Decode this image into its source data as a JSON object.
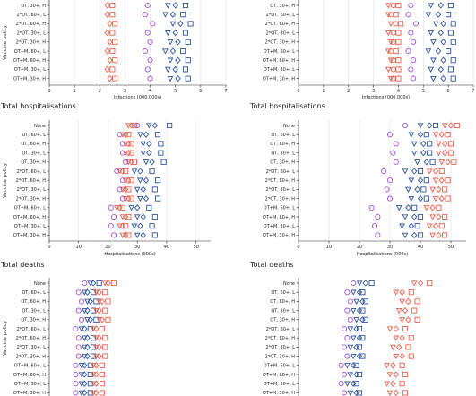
{
  "figure": {
    "policies": [
      "None",
      "OT, 60+, L",
      "OT, 60+, H",
      "OT, 30+, L",
      "OT, 30+, H",
      "2*OT, 60+, L",
      "2*OT, 60+, H",
      "2*OT, 30+, L",
      "2*OT, 30+, H",
      "OT+M, 60+, L",
      "OT+M, 60+, H",
      "OT+M, 30+, L",
      "OT+M, 30+, H"
    ],
    "colors": {
      "red": "#e8604c",
      "blue": "#2c55a0",
      "purple": "#a64fd6",
      "grid": "#e2e2e2",
      "axis": "#222222"
    },
    "marker_legend": {
      "circle": "purple",
      "triangle-down": "red/blue",
      "triangle-up": "red/blue",
      "diamond": "red/blue",
      "square": "red/blue"
    }
  },
  "chart_data": [
    {
      "type": "scatter",
      "title": "",
      "xlabel": "Infections (000,000s)",
      "ylabel": "Vaccine policy",
      "xlim": [
        0,
        7
      ],
      "xticks": [
        0,
        1,
        2,
        3,
        4,
        5,
        6,
        7
      ],
      "categories": [
        "OT, 30+, H",
        "2*OT, 60+, L",
        "2*OT, 60+, H",
        "2*OT, 30+, L",
        "2*OT, 30+, H",
        "OT+M, 60+, L",
        "OT+M, 60+, H",
        "OT+M, 30+, L",
        "OT+M, 30+, H"
      ],
      "series": [
        {
          "color": "red",
          "marker": "diamond",
          "values": [
            2.3,
            2.3,
            2.4,
            2.3,
            2.4,
            2.3,
            2.4,
            2.3,
            2.4
          ]
        },
        {
          "color": "red",
          "marker": "square",
          "values": [
            2.5,
            2.5,
            2.6,
            2.5,
            2.6,
            2.5,
            2.6,
            2.5,
            2.6
          ]
        },
        {
          "color": "purple",
          "marker": "circle",
          "values": [
            3.9,
            3.8,
            4.1,
            3.9,
            4.0,
            3.8,
            4.0,
            3.9,
            4.0
          ]
        },
        {
          "color": "blue",
          "marker": "triangle-down",
          "values": [
            4.7,
            4.6,
            4.9,
            4.7,
            4.8,
            4.6,
            4.8,
            4.7,
            4.8
          ]
        },
        {
          "color": "blue",
          "marker": "diamond",
          "values": [
            5.0,
            4.9,
            5.2,
            5.0,
            5.1,
            4.9,
            5.1,
            5.0,
            5.1
          ]
        },
        {
          "color": "blue",
          "marker": "square",
          "values": [
            5.4,
            5.3,
            5.6,
            5.4,
            5.5,
            5.3,
            5.5,
            5.4,
            5.5
          ]
        }
      ]
    },
    {
      "type": "scatter",
      "title": "",
      "xlabel": "Infections (000,000s)",
      "ylabel": "",
      "xlim": [
        0,
        7
      ],
      "xticks": [
        0,
        1,
        2,
        3,
        4,
        5,
        6,
        7
      ],
      "categories": [
        "OT, 30+, H",
        "2*OT, 60+, L",
        "2*OT, 60+, H",
        "2*OT, 30+, L",
        "2*OT, 30+, H",
        "OT+M, 60+, L",
        "OT+M, 60+, H",
        "OT+M, 30+, L",
        "OT+M, 30+, H"
      ],
      "series": [
        {
          "color": "red",
          "marker": "triangle-down",
          "values": [
            3.6,
            3.6,
            3.7,
            3.6,
            3.7,
            3.6,
            3.7,
            3.6,
            3.7
          ]
        },
        {
          "color": "red",
          "marker": "circle",
          "values": [
            3.8,
            3.7,
            3.9,
            3.8,
            3.8,
            3.7,
            3.8,
            3.8,
            3.8
          ]
        },
        {
          "color": "red",
          "marker": "square",
          "values": [
            4.0,
            3.9,
            4.1,
            4.0,
            4.0,
            3.9,
            4.0,
            4.0,
            4.0
          ]
        },
        {
          "color": "purple",
          "marker": "circle",
          "values": [
            4.5,
            4.4,
            4.7,
            4.5,
            4.6,
            4.4,
            4.6,
            4.5,
            4.6
          ]
        },
        {
          "color": "blue",
          "marker": "triangle-down",
          "values": [
            5.3,
            5.2,
            5.5,
            5.3,
            5.4,
            5.2,
            5.4,
            5.3,
            5.4
          ]
        },
        {
          "color": "blue",
          "marker": "diamond",
          "values": [
            5.7,
            5.6,
            5.8,
            5.7,
            5.8,
            5.6,
            5.8,
            5.7,
            5.8
          ]
        },
        {
          "color": "blue",
          "marker": "square",
          "values": [
            6.1,
            6.0,
            6.2,
            6.1,
            6.2,
            6.0,
            6.2,
            6.1,
            6.2
          ]
        }
      ]
    },
    {
      "type": "scatter",
      "title": "Total hospitalisations",
      "xlabel": "Hospitalisations (000s)",
      "ylabel": "Vaccine policy",
      "xlim": [
        0,
        55
      ],
      "xticks": [
        0,
        10,
        20,
        30,
        40,
        50
      ],
      "series": [
        {
          "color": "red",
          "marker": "triangle-down",
          "values": [
            27,
            25,
            26,
            26,
            27,
            24,
            26,
            25,
            26,
            23,
            25,
            24,
            25
          ]
        },
        {
          "color": "red",
          "marker": "diamond",
          "values": [
            28,
            26,
            27,
            27,
            28,
            25,
            27,
            26,
            27,
            24,
            26,
            25,
            26
          ]
        },
        {
          "color": "red",
          "marker": "square",
          "values": [
            29,
            27,
            28,
            28,
            29,
            26,
            28,
            27,
            28,
            25,
            27,
            26,
            27
          ]
        },
        {
          "color": "purple",
          "marker": "circle",
          "values": [
            30,
            24,
            25,
            25,
            26,
            23,
            25,
            24,
            25,
            21,
            22,
            21,
            22
          ]
        },
        {
          "color": "blue",
          "marker": "triangle-down",
          "values": [
            34,
            31,
            32,
            32,
            33,
            29,
            31,
            30,
            31,
            28,
            30,
            29,
            30
          ]
        },
        {
          "color": "blue",
          "marker": "diamond",
          "values": [
            36,
            33,
            34,
            34,
            35,
            31,
            33,
            32,
            33,
            30,
            32,
            31,
            32
          ]
        },
        {
          "color": "blue",
          "marker": "square",
          "values": [
            41,
            37,
            38,
            38,
            39,
            35,
            37,
            36,
            37,
            34,
            36,
            35,
            36
          ]
        }
      ]
    },
    {
      "type": "scatter",
      "title": "Total hospitalisations",
      "xlabel": "Hospitalisations (000s)",
      "ylabel": "",
      "xlim": [
        0,
        55
      ],
      "xticks": [
        0,
        10,
        20,
        30,
        40,
        50
      ],
      "series": [
        {
          "color": "purple",
          "marker": "circle",
          "values": [
            35,
            30,
            32,
            31,
            32,
            28,
            30,
            29,
            30,
            24,
            26,
            25,
            26
          ]
        },
        {
          "color": "blue",
          "marker": "triangle-down",
          "values": [
            40,
            37,
            38,
            38,
            39,
            35,
            37,
            36,
            37,
            33,
            35,
            34,
            35
          ]
        },
        {
          "color": "blue",
          "marker": "diamond",
          "values": [
            43,
            40,
            41,
            41,
            42,
            38,
            40,
            39,
            40,
            36,
            38,
            37,
            38
          ]
        },
        {
          "color": "blue",
          "marker": "square",
          "values": [
            45,
            42,
            43,
            43,
            44,
            40,
            42,
            41,
            42,
            38,
            40,
            39,
            40
          ]
        },
        {
          "color": "red",
          "marker": "triangle-down",
          "values": [
            48,
            45,
            46,
            46,
            47,
            43,
            45,
            44,
            45,
            42,
            44,
            43,
            44
          ]
        },
        {
          "color": "red",
          "marker": "diamond",
          "values": [
            50,
            47,
            48,
            48,
            49,
            45,
            47,
            46,
            47,
            44,
            46,
            45,
            46
          ]
        },
        {
          "color": "red",
          "marker": "square",
          "values": [
            52,
            49,
            50,
            50,
            51,
            47,
            49,
            48,
            49,
            46,
            48,
            47,
            48
          ]
        }
      ]
    },
    {
      "type": "scatter",
      "title": "Total deaths",
      "xlabel": "",
      "ylabel": "Vaccine policy",
      "xlim": [
        0,
        55
      ],
      "categories": [
        "None",
        "OT, 60+, L",
        "OT, 60+, H",
        "OT, 30+, L",
        "OT, 30+, H",
        "2*OT, 60+, L",
        "2*OT, 60+, H",
        "2*OT, 30+, L",
        "2*OT, 30+, H",
        "OT+M, 60+, L",
        "OT+M, 60+, H",
        "OT+M, 30+, L",
        "OT+M, 30+, H"
      ],
      "series": [
        {
          "color": "purple",
          "marker": "circle",
          "values": [
            12,
            10,
            11,
            10,
            11,
            9,
            10,
            10,
            10,
            9,
            9,
            9,
            9
          ]
        },
        {
          "color": "blue",
          "marker": "triangle-down",
          "values": [
            14,
            12,
            13,
            12,
            13,
            11,
            12,
            12,
            12,
            11,
            11,
            11,
            11
          ]
        },
        {
          "color": "blue",
          "marker": "diamond",
          "values": [
            15,
            13,
            14,
            13,
            14,
            12,
            13,
            13,
            13,
            12,
            12,
            12,
            12
          ]
        },
        {
          "color": "blue",
          "marker": "square",
          "values": [
            17,
            15,
            16,
            15,
            16,
            14,
            15,
            15,
            15,
            14,
            14,
            14,
            14
          ]
        },
        {
          "color": "red",
          "marker": "triangle-down",
          "values": [
            19,
            16,
            17,
            16,
            17,
            15,
            16,
            16,
            16,
            15,
            15,
            15,
            15
          ]
        },
        {
          "color": "red",
          "marker": "diamond",
          "values": [
            20,
            17,
            18,
            17,
            18,
            16,
            17,
            17,
            17,
            16,
            16,
            16,
            16
          ]
        },
        {
          "color": "red",
          "marker": "square",
          "values": [
            22,
            19,
            20,
            19,
            20,
            18,
            19,
            19,
            19,
            18,
            18,
            18,
            18
          ]
        }
      ]
    },
    {
      "type": "scatter",
      "title": "Total deaths",
      "xlabel": "",
      "ylabel": "",
      "xlim": [
        0,
        55
      ],
      "series": [
        {
          "color": "purple",
          "marker": "circle",
          "values": [
            18,
            16,
            17,
            16,
            17,
            15,
            16,
            15,
            16,
            14,
            15,
            14,
            15
          ]
        },
        {
          "color": "blue",
          "marker": "triangle-down",
          "values": [
            20,
            18,
            19,
            18,
            19,
            17,
            18,
            17,
            18,
            16,
            17,
            16,
            17
          ]
        },
        {
          "color": "blue",
          "marker": "diamond",
          "values": [
            22,
            20,
            21,
            20,
            21,
            19,
            20,
            19,
            20,
            18,
            19,
            18,
            19
          ]
        },
        {
          "color": "blue",
          "marker": "square",
          "values": [
            24,
            21,
            22,
            21,
            22,
            20,
            21,
            20,
            21,
            19,
            20,
            19,
            20
          ]
        },
        {
          "color": "red",
          "marker": "triangle-down",
          "values": [
            38,
            32,
            34,
            33,
            34,
            30,
            32,
            31,
            32,
            29,
            30,
            29,
            30
          ]
        },
        {
          "color": "red",
          "marker": "diamond",
          "values": [
            40,
            34,
            36,
            35,
            36,
            32,
            34,
            33,
            34,
            31,
            32,
            31,
            32
          ]
        },
        {
          "color": "red",
          "marker": "square",
          "values": [
            43,
            37,
            39,
            38,
            39,
            35,
            37,
            36,
            37,
            34,
            35,
            34,
            35
          ]
        }
      ]
    }
  ]
}
